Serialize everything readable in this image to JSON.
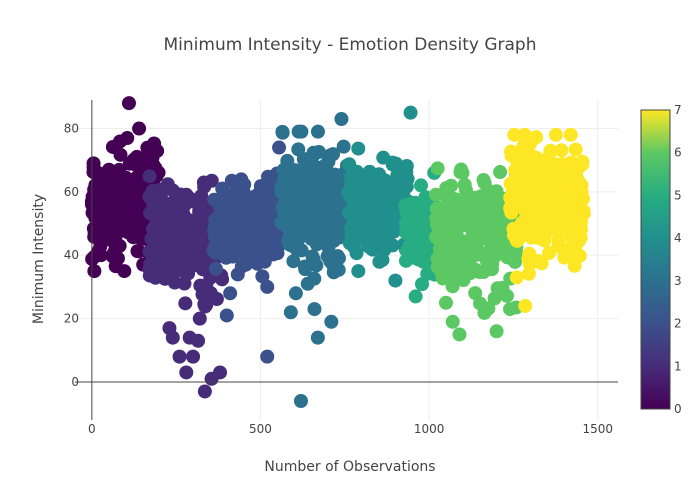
{
  "chart_data": {
    "type": "scatter",
    "title": "Minimum Intensity - Emotion Density Graph",
    "xlabel": "Number of Observations",
    "ylabel": "Minimum Intensity",
    "xlim": [
      -50,
      1560
    ],
    "ylim": [
      -12,
      89
    ],
    "xticks": [
      0,
      500,
      1000,
      1500
    ],
    "xtick_labels": [
      "0",
      "500",
      "1000",
      "1500"
    ],
    "yticks": [
      0,
      20,
      40,
      60,
      80
    ],
    "ytick_labels": [
      "0",
      "20",
      "40",
      "60",
      "80"
    ],
    "grid": true,
    "colorscale": "Viridis",
    "colorbar": {
      "range": [
        0,
        7
      ],
      "ticks": [
        0,
        1,
        2,
        3,
        4,
        5,
        6,
        7
      ],
      "tick_labels": [
        "0",
        "1",
        "2",
        "3",
        "4",
        "5",
        "6",
        "7"
      ]
    },
    "clusters": [
      {
        "emotion": 0,
        "x_range": [
          0,
          200
        ],
        "y_range": [
          35,
          82
        ],
        "y_center": 55,
        "count": 260,
        "extra_points": [
          [
            110,
            88
          ],
          [
            105,
            77
          ],
          [
            140,
            80
          ],
          [
            5,
            69
          ]
        ]
      },
      {
        "emotion": 1,
        "x_range": [
          170,
          390
        ],
        "y_range": [
          14,
          66
        ],
        "y_center": 45,
        "count": 260,
        "extra_points": [
          [
            335,
            -3
          ],
          [
            355,
            1
          ],
          [
            380,
            3
          ],
          [
            280,
            3
          ],
          [
            260,
            8
          ],
          [
            300,
            8
          ],
          [
            315,
            13
          ],
          [
            290,
            14
          ],
          [
            230,
            17
          ],
          [
            240,
            14
          ],
          [
            320,
            20
          ]
        ]
      },
      {
        "emotion": 2,
        "x_range": [
          360,
          560
        ],
        "y_range": [
          28,
          66
        ],
        "y_center": 50,
        "count": 260,
        "extra_points": [
          [
            520,
            8
          ],
          [
            400,
            21
          ],
          [
            410,
            28
          ],
          [
            520,
            30
          ],
          [
            555,
            74
          ]
        ]
      },
      {
        "emotion": 3,
        "x_range": [
          560,
          760
        ],
        "y_range": [
          22,
          79
        ],
        "y_center": 55,
        "count": 260,
        "extra_points": [
          [
            620,
            -6
          ],
          [
            670,
            14
          ],
          [
            710,
            19
          ],
          [
            590,
            22
          ],
          [
            660,
            23
          ],
          [
            605,
            28
          ],
          [
            640,
            31
          ],
          [
            740,
            83
          ]
        ]
      },
      {
        "emotion": 4,
        "x_range": [
          760,
          940
        ],
        "y_range": [
          32,
          74
        ],
        "y_center": 55,
        "count": 260,
        "extra_points": [
          [
            945,
            85
          ],
          [
            900,
            32
          ],
          [
            790,
            35
          ]
        ]
      },
      {
        "emotion": 5,
        "x_range": [
          930,
          1020
        ],
        "y_range": [
          27,
          66
        ],
        "y_center": 48,
        "count": 140,
        "extra_points": [
          [
            1015,
            66
          ],
          [
            960,
            27
          ]
        ]
      },
      {
        "emotion": 6,
        "x_range": [
          1020,
          1260
        ],
        "y_range": [
          15,
          71
        ],
        "y_center": 47,
        "count": 260,
        "extra_points": [
          [
            1090,
            15
          ],
          [
            1070,
            19
          ],
          [
            1200,
            16
          ],
          [
            1240,
            23
          ],
          [
            1050,
            25
          ]
        ]
      },
      {
        "emotion": 7,
        "x_range": [
          1240,
          1460
        ],
        "y_range": [
          24,
          78
        ],
        "y_center": 57,
        "count": 260,
        "extra_points": [
          [
            1420,
            78
          ],
          [
            1285,
            24
          ],
          [
            1260,
            33
          ]
        ]
      }
    ]
  }
}
